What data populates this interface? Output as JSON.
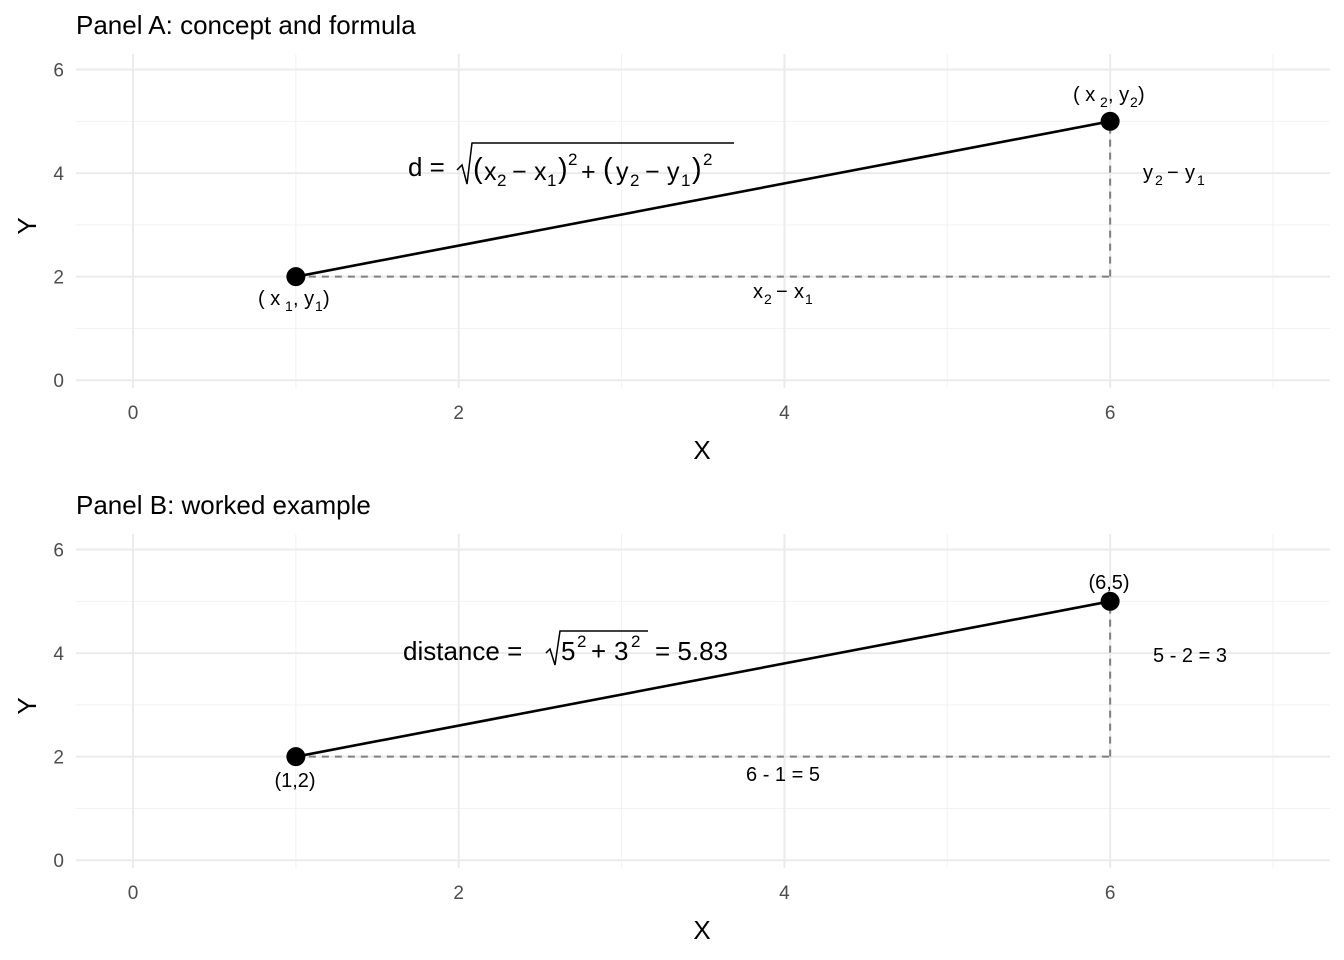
{
  "chart_data": [
    {
      "type": "line",
      "title": "Panel A: concept and formula",
      "xlabel": "X",
      "ylabel": "Y",
      "xlim": [
        -0.35,
        7.35
      ],
      "ylim": [
        -0.15,
        6.3
      ],
      "xticks": [
        0,
        2,
        4,
        6
      ],
      "yticks": [
        0,
        2,
        4,
        6
      ],
      "grid": true,
      "points": [
        {
          "x": 1,
          "y": 2,
          "label": "( x1, y1)"
        },
        {
          "x": 6,
          "y": 5,
          "label": "( x2, y2)"
        }
      ],
      "segments": [
        {
          "from": [
            1,
            2
          ],
          "to": [
            6,
            5
          ],
          "style": "solid"
        },
        {
          "from": [
            1,
            2
          ],
          "to": [
            6,
            2
          ],
          "style": "dashed"
        },
        {
          "from": [
            6,
            2
          ],
          "to": [
            6,
            5
          ],
          "style": "dashed"
        }
      ],
      "annotations": {
        "formula": "d = √((x2 − x1)² + (y2 − y1)²)",
        "dx": "x2 − x1",
        "dy": "y2 − y1"
      }
    },
    {
      "type": "line",
      "title": "Panel B: worked example",
      "xlabel": "X",
      "ylabel": "Y",
      "xlim": [
        -0.35,
        7.35
      ],
      "ylim": [
        -0.15,
        6.3
      ],
      "xticks": [
        0,
        2,
        4,
        6
      ],
      "yticks": [
        0,
        2,
        4,
        6
      ],
      "grid": true,
      "points": [
        {
          "x": 1,
          "y": 2,
          "label": "(1,2)"
        },
        {
          "x": 6,
          "y": 5,
          "label": "(6,5)"
        }
      ],
      "segments": [
        {
          "from": [
            1,
            2
          ],
          "to": [
            6,
            5
          ],
          "style": "solid"
        },
        {
          "from": [
            1,
            2
          ],
          "to": [
            6,
            2
          ],
          "style": "dashed"
        },
        {
          "from": [
            6,
            2
          ],
          "to": [
            6,
            5
          ],
          "style": "dashed"
        }
      ],
      "annotations": {
        "formula": "distance = √(5² + 3²) = 5.83",
        "dx": "6 - 1 = 5",
        "dy": "5 - 2 = 3"
      }
    }
  ],
  "colors": {
    "grid_major": "#ebebeb",
    "grid_minor": "#f2f2f2",
    "segment": "#000000",
    "dashed": "#7f7f7f",
    "point": "#000000",
    "tick_text": "#4d4d4d"
  }
}
